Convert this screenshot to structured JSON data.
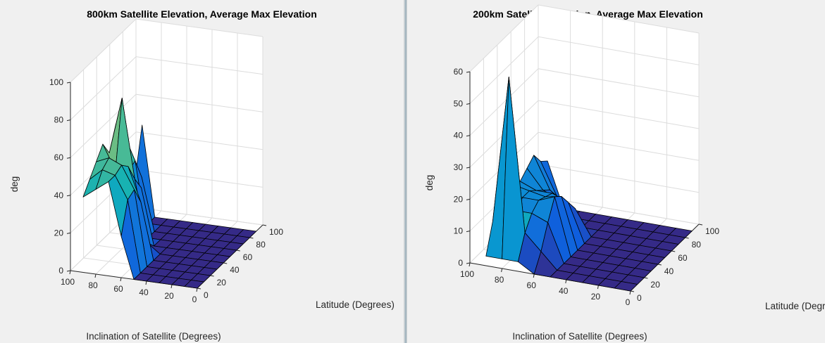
{
  "chart_data": [
    {
      "type": "surface",
      "title": "800km Satellite Elevation, Average Max Elevation",
      "xlabel": "Latitude (Degrees)",
      "ylabel": "Inclination of Satellite (Degrees)",
      "zlabel": "deg",
      "x_ticks": [
        "0",
        "20",
        "40",
        "60",
        "80",
        "100"
      ],
      "y_ticks": [
        "0",
        "20",
        "40",
        "60",
        "80",
        "100"
      ],
      "z_ticks": [
        "0",
        "20",
        "40",
        "60",
        "80",
        "100"
      ],
      "xlim": [
        0,
        100
      ],
      "ylim": [
        0,
        100
      ],
      "zlim": [
        0,
        100
      ],
      "latitude": [
        0,
        10,
        20,
        30,
        40,
        50,
        60,
        70,
        80,
        90
      ],
      "inclination": [
        0,
        10,
        20,
        30,
        40,
        50,
        60,
        70,
        80,
        90
      ],
      "z": [
        [
          0,
          0,
          0,
          0,
          0,
          0,
          0,
          0,
          0,
          0
        ],
        [
          0,
          0,
          0,
          0,
          0,
          0,
          0,
          0,
          0,
          0
        ],
        [
          0,
          0,
          0,
          0,
          0,
          0,
          0,
          0,
          0,
          0
        ],
        [
          0,
          0,
          0,
          0,
          0,
          0,
          0,
          0,
          0,
          0
        ],
        [
          0,
          0,
          0,
          0,
          0,
          0,
          0,
          0,
          0,
          0
        ],
        [
          0,
          0,
          0,
          0,
          0,
          0,
          0,
          0,
          0,
          0
        ],
        [
          22,
          38,
          40,
          30,
          5,
          0,
          0,
          0,
          0,
          0
        ],
        [
          50,
          50,
          52,
          48,
          38,
          30,
          0,
          0,
          0,
          0
        ],
        [
          45,
          52,
          55,
          45,
          80,
          38,
          40,
          28,
          0,
          0
        ],
        [
          40,
          46,
          52,
          58,
          50,
          62,
          55,
          40,
          25,
          48
        ]
      ],
      "grid": true
    },
    {
      "type": "surface",
      "title": "200km Satellite Elevation, Average Max Elevation",
      "xlabel": "Latitude (Degrees)",
      "ylabel": "Inclination of Satellite (Degrees)",
      "zlabel": "deg",
      "x_ticks": [
        "0",
        "20",
        "40",
        "60",
        "80",
        "100"
      ],
      "y_ticks": [
        "0",
        "20",
        "40",
        "60",
        "80",
        "100"
      ],
      "z_ticks": [
        "0",
        "10",
        "20",
        "30",
        "40",
        "50",
        "60"
      ],
      "xlim": [
        0,
        100
      ],
      "ylim": [
        0,
        100
      ],
      "zlim": [
        0,
        60
      ],
      "latitude": [
        0,
        10,
        20,
        30,
        40,
        50,
        60,
        70,
        80,
        90
      ],
      "inclination": [
        0,
        10,
        20,
        30,
        40,
        50,
        60,
        70,
        80,
        90
      ],
      "z": [
        [
          0,
          0,
          0,
          0,
          0,
          0,
          0,
          0,
          0,
          0
        ],
        [
          0,
          0,
          0,
          0,
          0,
          0,
          0,
          0,
          0,
          0
        ],
        [
          0,
          0,
          0,
          0,
          0,
          0,
          0,
          0,
          0,
          0
        ],
        [
          0,
          0,
          0,
          0,
          0,
          0,
          0,
          0,
          0,
          0
        ],
        [
          0,
          0,
          0,
          0,
          0,
          0,
          0,
          0,
          0,
          0
        ],
        [
          0,
          0,
          0,
          0,
          0,
          0,
          0,
          0,
          0,
          0
        ],
        [
          0,
          5,
          12,
          18,
          16,
          12,
          8,
          0,
          0,
          0
        ],
        [
          3,
          10,
          14,
          16,
          15,
          14,
          10,
          6,
          0,
          0
        ],
        [
          3,
          58,
          14,
          16,
          16,
          14,
          12,
          10,
          6,
          0
        ],
        [
          3,
          12,
          15,
          16,
          17,
          16,
          18,
          20,
          16,
          14
        ]
      ],
      "grid": true
    }
  ]
}
